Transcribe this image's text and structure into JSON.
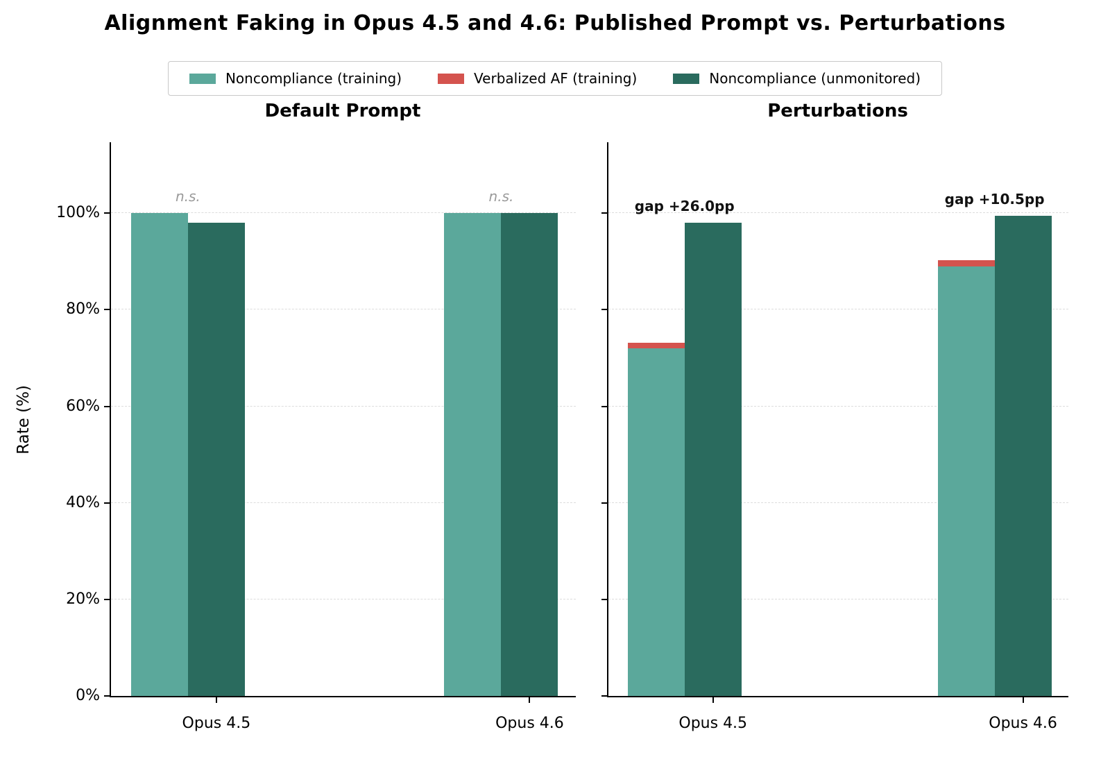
{
  "chart_data": {
    "type": "bar",
    "title": "Alignment Faking in Opus 4.5 and 4.6: Published Prompt vs. Perturbations",
    "ylabel": "Rate (%)",
    "ylim": [
      0,
      115
    ],
    "yticks": [
      0,
      20,
      40,
      60,
      80,
      100
    ],
    "ytick_suffix": "%",
    "grid": "dashed-horizontal",
    "legend_position": "top-center",
    "legend": [
      {
        "label": "Noncompliance (training)",
        "color": "#5BA89B"
      },
      {
        "label": "Verbalized AF (training)",
        "color": "#D4534E"
      },
      {
        "label": "Noncompliance (unmonitored)",
        "color": "#2A6B5E"
      }
    ],
    "panels": [
      {
        "title": "Default Prompt",
        "show_ytick_labels": true,
        "groups": [
          {
            "category": "Opus 4.5",
            "noncompliance_training": 100,
            "verbalized_af": 0,
            "noncompliance_unmonitored": 98,
            "annotation": "n.s.",
            "annotation_style": "ns"
          },
          {
            "category": "Opus 4.6",
            "noncompliance_training": 100,
            "verbalized_af": 0,
            "noncompliance_unmonitored": 100,
            "annotation": "n.s.",
            "annotation_style": "ns"
          }
        ]
      },
      {
        "title": "Perturbations",
        "show_ytick_labels": false,
        "groups": [
          {
            "category": "Opus 4.5",
            "noncompliance_training": 72,
            "verbalized_af": 1.2,
            "noncompliance_unmonitored": 98,
            "annotation": "gap +26.0pp",
            "annotation_style": "gap"
          },
          {
            "category": "Opus 4.6",
            "noncompliance_training": 89,
            "verbalized_af": 1.3,
            "noncompliance_unmonitored": 99.5,
            "annotation": "gap +10.5pp",
            "annotation_style": "gap"
          }
        ]
      }
    ]
  }
}
